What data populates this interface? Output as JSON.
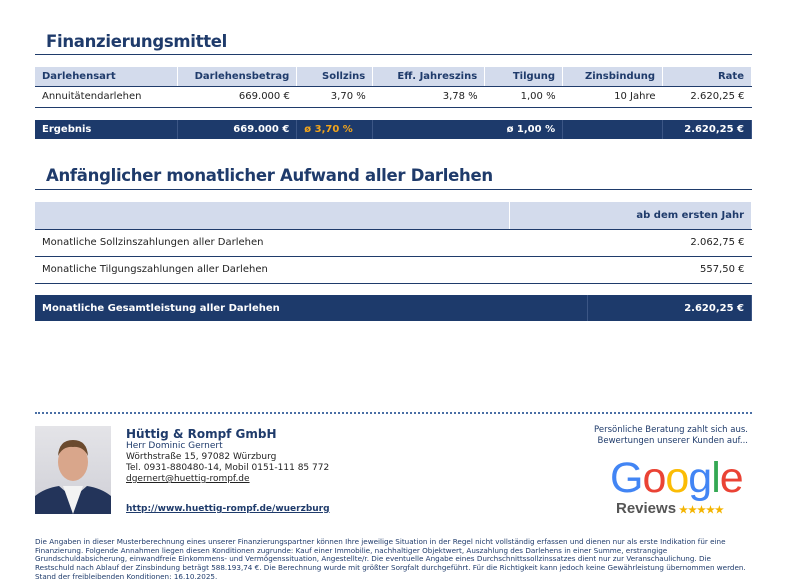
{
  "section1": {
    "title": "Finanzierungsmittel",
    "headers": [
      "Darlehensart",
      "Darlehensbetrag",
      "Sollzins",
      "Eff. Jahreszins",
      "Tilgung",
      "Zinsbindung",
      "Rate"
    ],
    "rows": [
      [
        "Annuitätendarlehen",
        "669.000 €",
        "3,70 %",
        "3,78 %",
        "1,00 %",
        "10 Jahre",
        "2.620,25 €"
      ]
    ],
    "result": [
      "Ergebnis",
      "669.000 €",
      "ø 3,70 %",
      "",
      "ø 1,00 %",
      "",
      "2.620,25 €"
    ]
  },
  "section2": {
    "title": "Anfänglicher monatlicher Aufwand aller Darlehen",
    "header": "ab dem ersten Jahr",
    "rows": [
      {
        "label": "Monatliche Sollzinszahlungen aller Darlehen",
        "value": "2.062,75 €"
      },
      {
        "label": "Monatliche Tilgungszahlungen aller Darlehen",
        "value": "557,50 €"
      }
    ],
    "total": {
      "label": "Monatliche Gesamtleistung aller Darlehen",
      "value": "2.620,25 €"
    }
  },
  "contact": {
    "company": "Hüttig & Rompf GmbH",
    "name": "Herr Dominic Gernert",
    "address": "Wörthstraße 15, 97082 Würzburg",
    "phone": "Tel. 0931-880480-14, Mobil 0151-111 85 772",
    "email": "dgernert@huettig-rompf.de",
    "url": "http://www.huettig-rompf.de/wuerzburg"
  },
  "reviews": {
    "line1": "Persönliche Beratung zahlt sich aus.",
    "line2": "Bewertungen unserer Kunden auf...",
    "logo": "Google",
    "label": "Reviews",
    "stars": "★★★★★"
  },
  "disclaimer": "Die Angaben in dieser Musterberechnung eines unserer Finanzierungspartner können Ihre jeweilige Situation in der Regel nicht vollständig erfassen und dienen nur als erste Indikation für eine Finanzierung. Folgende Annahmen liegen diesen Konditionen zugrunde: Kauf einer Immobilie, nachhaltiger Objektwert, Auszahlung des Darlehens in einer Summe, erstrangige Grundschuldabsicherung, einwandfreie Einkommens- und Vermögenssituation, Angestellte/r. Die eventuelle Angabe eines Durchschnittssollzinssatzes dient nur zur Veranschaulichung. Die Restschuld nach Ablauf der Zinsbindung beträgt 588.193,74 €. Die Berechnung wurde mit größter Sorgfalt durchgeführt. Für die Richtigkeit kann jedoch keine Gewährleistung übernommen werden. Stand der freibleibenden Konditionen: 16.10.2025.",
  "colors": {
    "primary": "#1d3a6b",
    "header_bg": "#d3dbec",
    "accent": "#f2a51b"
  }
}
